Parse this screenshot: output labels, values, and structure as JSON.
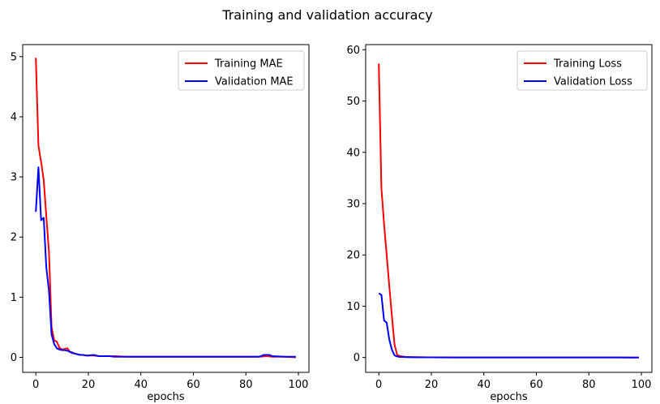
{
  "figure_title": "Training and validation accuracy",
  "colors": {
    "training": "#ff0000",
    "validation": "#0000ff"
  },
  "chart_data": [
    {
      "type": "line",
      "title": "",
      "xlabel": "epochs",
      "ylabel": "",
      "xlim": [
        -5,
        104
      ],
      "ylim": [
        -0.25,
        5.2
      ],
      "xticks": [
        0,
        20,
        40,
        60,
        80,
        100
      ],
      "yticks": [
        0,
        1,
        2,
        3,
        4,
        5
      ],
      "legend_position": "top-right",
      "grid": false,
      "series": [
        {
          "name": "Training MAE",
          "color": "#ff0000",
          "x": [
            0,
            1,
            2,
            3,
            4,
            5,
            6,
            7,
            8,
            9,
            10,
            11,
            12,
            13,
            14,
            15,
            16,
            17,
            18,
            19,
            20,
            22,
            24,
            26,
            28,
            30,
            35,
            40,
            45,
            50,
            55,
            60,
            65,
            70,
            75,
            80,
            85,
            88,
            90,
            95,
            99
          ],
          "y": [
            4.98,
            3.52,
            3.25,
            2.95,
            2.35,
            1.75,
            0.5,
            0.28,
            0.26,
            0.16,
            0.13,
            0.14,
            0.15,
            0.09,
            0.08,
            0.06,
            0.05,
            0.04,
            0.04,
            0.03,
            0.03,
            0.03,
            0.02,
            0.02,
            0.02,
            0.02,
            0.01,
            0.01,
            0.01,
            0.01,
            0.01,
            0.01,
            0.01,
            0.01,
            0.01,
            0.01,
            0.01,
            0.02,
            0.01,
            0.01,
            0.0
          ]
        },
        {
          "name": "Validation MAE",
          "color": "#0000ff",
          "x": [
            0,
            1,
            2,
            3,
            4,
            5,
            6,
            7,
            8,
            9,
            10,
            11,
            12,
            13,
            14,
            15,
            16,
            17,
            18,
            19,
            20,
            22,
            24,
            26,
            28,
            30,
            35,
            40,
            45,
            50,
            55,
            60,
            65,
            70,
            75,
            80,
            85,
            87,
            88,
            89,
            90,
            95,
            99
          ],
          "y": [
            2.42,
            3.16,
            2.28,
            2.32,
            1.5,
            1.1,
            0.38,
            0.22,
            0.15,
            0.13,
            0.12,
            0.12,
            0.11,
            0.09,
            0.07,
            0.06,
            0.05,
            0.04,
            0.04,
            0.03,
            0.03,
            0.04,
            0.02,
            0.02,
            0.02,
            0.01,
            0.01,
            0.01,
            0.01,
            0.01,
            0.01,
            0.01,
            0.01,
            0.01,
            0.01,
            0.01,
            0.01,
            0.04,
            0.04,
            0.04,
            0.02,
            0.01,
            0.01
          ]
        }
      ]
    },
    {
      "type": "line",
      "title": "",
      "xlabel": "epochs",
      "ylabel": "",
      "xlim": [
        -5,
        104
      ],
      "ylim": [
        -2.9,
        61
      ],
      "xticks": [
        0,
        20,
        40,
        60,
        80,
        100
      ],
      "yticks": [
        0,
        10,
        20,
        30,
        40,
        50,
        60
      ],
      "legend_position": "top-right",
      "grid": false,
      "series": [
        {
          "name": "Training Loss",
          "color": "#ff0000",
          "x": [
            0,
            1,
            2,
            3,
            4,
            5,
            6,
            7,
            8,
            9,
            10,
            12,
            15,
            20,
            30,
            40,
            50,
            60,
            70,
            80,
            90,
            99
          ],
          "y": [
            57.3,
            33.0,
            26.0,
            20.0,
            14.0,
            8.0,
            2.5,
            0.5,
            0.3,
            0.2,
            0.1,
            0.05,
            0.05,
            0.02,
            0.01,
            0.01,
            0.01,
            0.01,
            0.01,
            0.01,
            0.01,
            0.0
          ]
        },
        {
          "name": "Validation Loss",
          "color": "#0000ff",
          "x": [
            0,
            1,
            2,
            3,
            4,
            5,
            6,
            7,
            8,
            9,
            10,
            12,
            15,
            20,
            30,
            40,
            50,
            60,
            70,
            80,
            90,
            99
          ],
          "y": [
            12.5,
            12.2,
            7.2,
            6.8,
            3.5,
            1.5,
            0.4,
            0.2,
            0.1,
            0.1,
            0.05,
            0.05,
            0.02,
            0.02,
            0.01,
            0.01,
            0.01,
            0.01,
            0.01,
            0.01,
            0.01,
            0.0
          ]
        }
      ]
    }
  ]
}
